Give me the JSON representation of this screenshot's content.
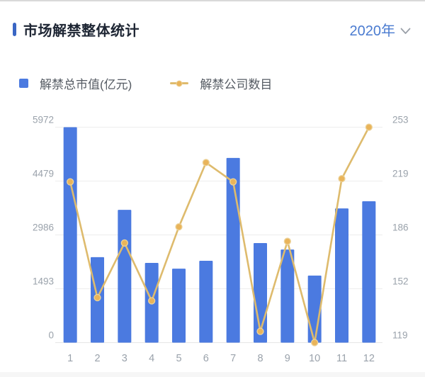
{
  "header": {
    "title": "市场解禁整体统计",
    "year_selector": "2020年"
  },
  "legend": [
    {
      "label": "解禁总市值(亿元)",
      "marker": "square"
    },
    {
      "label": "解禁公司数目",
      "marker": "line-dot"
    }
  ],
  "colors": {
    "bar": "#4b7ae0",
    "line": "#debb6d",
    "dot_fill": "#e9b45a",
    "dot_ring": "#ecd39b",
    "accent": "#3a66c4",
    "year_text": "#4a7bd0",
    "axis_text": "#9aa2ab",
    "grid_line": "#ededed",
    "baseline": "#e6e6e6",
    "title_text": "#1d2533"
  },
  "chart_data": {
    "type": "bar+line",
    "title": "市场解禁整体统计",
    "period": "2020年",
    "categories": [
      "1",
      "2",
      "3",
      "4",
      "5",
      "6",
      "7",
      "8",
      "9",
      "10",
      "11",
      "12"
    ],
    "series": [
      {
        "name": "解禁总市值(亿元)",
        "type": "bar",
        "y_axis": "left",
        "values": [
          5972,
          2370,
          3680,
          2210,
          2050,
          2270,
          5120,
          2760,
          2580,
          1860,
          3720,
          3920
        ]
      },
      {
        "name": "解禁公司数目",
        "type": "line",
        "y_axis": "right",
        "values": [
          219,
          147,
          181,
          145,
          191,
          231,
          219,
          126,
          182,
          119,
          221,
          253
        ]
      }
    ],
    "left_axis": {
      "ticks": [
        0,
        1493,
        2986,
        4479,
        5972
      ],
      "min": 0,
      "max": 5972
    },
    "right_axis": {
      "ticks": [
        119,
        152,
        186,
        219,
        253
      ],
      "min": 119,
      "max": 253
    },
    "grid": true,
    "legend_position": "top-left"
  }
}
